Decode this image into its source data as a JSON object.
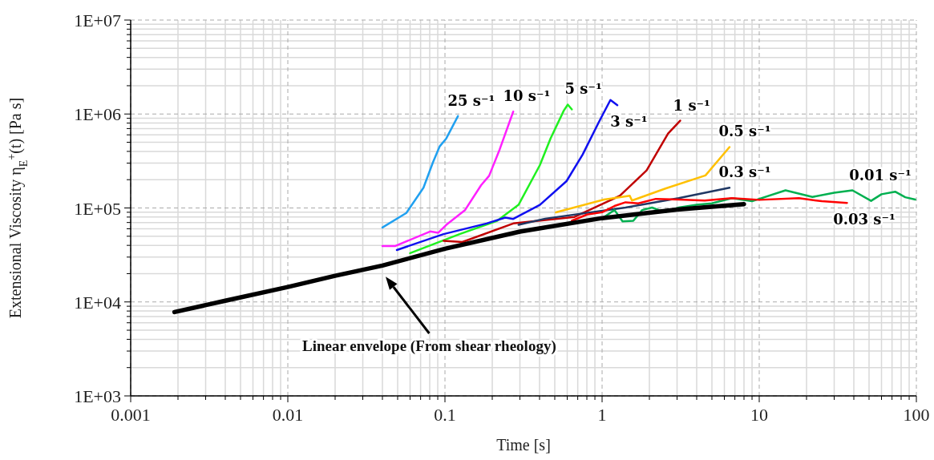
{
  "chart_data": {
    "type": "line",
    "xlabel": "Time [s]",
    "ylabel": "Extensional Viscosity η$_{E}$$^{+}$(t) [Pa s]",
    "log": "xy",
    "grid": true,
    "marker": "none",
    "line_style": "solid",
    "xlim": [
      0.001,
      100
    ],
    "xticks": [
      0.001,
      0.01,
      0.1,
      1,
      10,
      100
    ],
    "ylim": [
      1000,
      10000000
    ],
    "yticks": [
      {
        "value": 1000,
        "label": "1E+03"
      },
      {
        "value": 10000,
        "label": "1E+04"
      },
      {
        "value": 100000,
        "label": "1E+05"
      },
      {
        "value": 1000000,
        "label": "1E+06"
      },
      {
        "value": 10000000,
        "label": "1E+07"
      }
    ],
    "annotations": [
      "Linear envelope (From shear rheology)"
    ],
    "series": [
      {
        "name": "25 s⁻¹",
        "color": "#20a0f0",
        "x": [
          0.04,
          0.0568,
          0.073,
          0.0838,
          0.0924,
          0.102,
          0.121
        ],
        "values": [
          62000,
          88500,
          164000,
          305000,
          450000,
          550000,
          950000
        ]
      },
      {
        "name": "10 s⁻¹",
        "color": "#ff20ff",
        "x": [
          0.04,
          0.0484,
          0.0805,
          0.0907,
          0.102,
          0.134,
          0.17,
          0.191,
          0.223,
          0.272
        ],
        "values": [
          39400,
          39400,
          56200,
          54500,
          66100,
          94600,
          175000,
          220000,
          420000,
          1060000
        ]
      },
      {
        "name": "5 s⁻¹",
        "color": "#20f020",
        "x": [
          0.06,
          0.124,
          0.215,
          0.294,
          0.402,
          0.47,
          0.571,
          0.605,
          0.642
        ],
        "values": [
          33000,
          52700,
          73000,
          108000,
          286000,
          550000,
          1090000,
          1260000,
          1120000
        ]
      },
      {
        "name": "3 s⁻¹",
        "color": "#1010f0",
        "x": [
          0.0494,
          0.098,
          0.184,
          0.242,
          0.272,
          0.402,
          0.594,
          0.752,
          0.95,
          1.13,
          1.25
        ],
        "values": [
          35700,
          52700,
          68400,
          78900,
          76400,
          108000,
          193000,
          370000,
          810000,
          1410000,
          1240000
        ]
      },
      {
        "name": "1 s⁻¹",
        "color": "#c00000",
        "x": [
          0.098,
          0.129,
          0.272,
          0.668,
          1.3,
          1.92,
          2.63,
          3.14
        ],
        "values": [
          44800,
          43400,
          68400,
          80300,
          135000,
          251000,
          620000,
          850000
        ]
      },
      {
        "name": "0.5 s⁻¹",
        "color": "#ffc000",
        "x": [
          0.508,
          1.03,
          1.5,
          1.55,
          2.53,
          4.55,
          6.47
        ],
        "values": [
          89700,
          123000,
          135000,
          120000,
          161000,
          222000,
          445000
        ]
      },
      {
        "name": "0.3 s⁻¹",
        "color": "#203864",
        "x": [
          0.294,
          0.434,
          1.41,
          3.07,
          6.47
        ],
        "values": [
          66100,
          76900,
          101000,
          127000,
          164000
        ]
      },
      {
        "name": "0.01 s⁻¹",
        "color": "#00b050",
        "x": [
          1.03,
          1.2,
          1.35,
          1.58,
          1.8,
          2.08,
          2.5,
          3.07,
          4,
          5,
          6.7,
          9,
          14.7,
          21.8,
          30,
          39.2,
          51.5,
          60,
          73.3,
          85,
          98.4
        ],
        "values": [
          80300,
          95000,
          72000,
          73000,
          95000,
          101000,
          90000,
          101000,
          108000,
          112000,
          127000,
          118000,
          154000,
          131000,
          145000,
          154000,
          119000,
          140000,
          149000,
          130000,
          123000
        ]
      },
      {
        "name": "0.03 s⁻¹",
        "color": "#ff0000",
        "x": [
          0.642,
          0.8,
          1,
          1.2,
          1.41,
          1.7,
          2.2,
          3.07,
          4.5,
          6.7,
          10,
          17.9,
          25,
          36.2
        ],
        "values": [
          73000,
          85000,
          90000,
          105000,
          115000,
          112000,
          125000,
          123000,
          120000,
          127000,
          122000,
          127000,
          118000,
          113000
        ]
      },
      {
        "color": "#000000",
        "x": [
          0.0019,
          0.004,
          0.01,
          0.02,
          0.04,
          0.1,
          0.3,
          1,
          3,
          8
        ],
        "values": [
          7800,
          10300,
          14400,
          19000,
          24400,
          36800,
          56000,
          78000,
          96000,
          110000
        ]
      }
    ]
  }
}
